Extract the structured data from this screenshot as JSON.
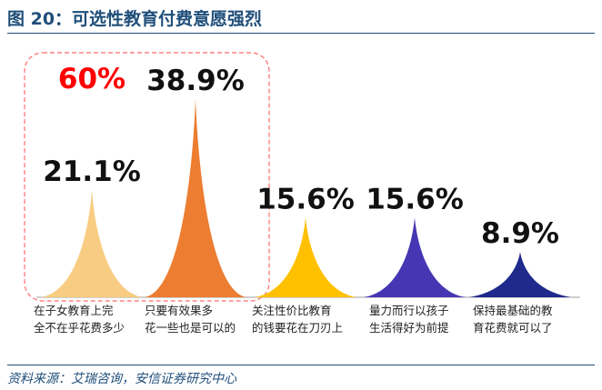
{
  "title": "图 20：可选性教育付费意愿强烈",
  "source": "资料来源：艾瑞咨询，安信证券研究中心",
  "highlight": {
    "label": "60%",
    "color": "#ff0000"
  },
  "colors": {
    "border": "#1f4e79",
    "highlight_box": "#ff6b6b"
  },
  "chart_data": {
    "type": "bar",
    "title": "",
    "unit": "%",
    "categories": [
      [
        "在子女教育上完",
        "全不在乎花费多少"
      ],
      [
        "只要有效果多",
        "花一些也是可以的"
      ],
      [
        "关注性价比教育",
        "的钱要花在刀刃上"
      ],
      [
        "量力而行以孩子",
        "生活得好为前提"
      ],
      [
        "保持最基础的教",
        "育花费就可以了"
      ]
    ],
    "values": [
      21.1,
      38.9,
      15.6,
      15.6,
      8.9
    ],
    "labels": [
      "21.1%",
      "38.9%",
      "15.6%",
      "15.6%",
      "8.9%"
    ],
    "colors": [
      "#f8cc82",
      "#ec7d31",
      "#ffc000",
      "#4636b4",
      "#1f2a8c"
    ]
  }
}
